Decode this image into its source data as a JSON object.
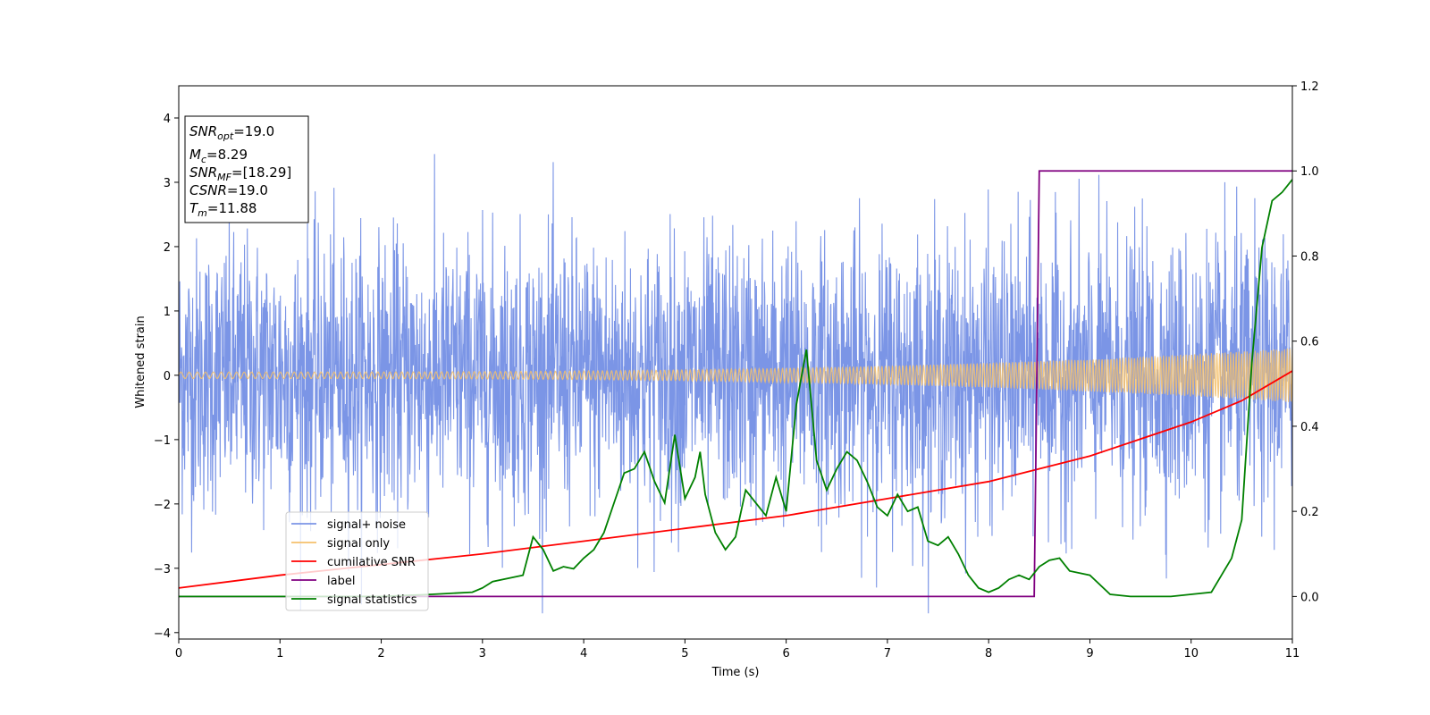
{
  "chart_data": {
    "type": "line",
    "xlabel": "Time (s)",
    "ylabel": "Whitened strain",
    "ylabel_right": "",
    "xlim": [
      0,
      11
    ],
    "ylim": [
      -4.1,
      4.5
    ],
    "ylim_right": [
      -0.1,
      1.2
    ],
    "x_ticks": [
      "0",
      "1",
      "2",
      "3",
      "4",
      "5",
      "6",
      "7",
      "8",
      "9",
      "10",
      "11"
    ],
    "y_ticks": [
      "−4",
      "−3",
      "−2",
      "−1",
      "0",
      "1",
      "2",
      "3",
      "4"
    ],
    "y_ticks_right": [
      "0.0",
      "0.2",
      "0.4",
      "0.6",
      "0.8",
      "1.0",
      "1.2"
    ],
    "grid": false,
    "legend_position": "lower-left",
    "info_box": {
      "lines": [
        {
          "sym": "SNR",
          "sub": "opt",
          "val": "=19.0"
        },
        {
          "sym": "M",
          "sub": "c",
          "val": "=8.29"
        },
        {
          "sym": "SNR",
          "sub": "MF",
          "val": "=[18.29]"
        },
        {
          "sym": "CSNR",
          "sub": "",
          "val": "=19.0"
        },
        {
          "sym": "T",
          "sub": "m",
          "val": "=11.88"
        }
      ]
    },
    "series": [
      {
        "name": "signal+ noise",
        "axis": "left",
        "color": "#7b95e6",
        "kind": "noise",
        "note_envelope": "values range approximately between -3.7 and 3.7 with typical spread +/-1.5"
      },
      {
        "name": "signal only",
        "axis": "left",
        "color": "#f5c16c",
        "kind": "chirp",
        "amplitude_start": 0.05,
        "amplitude_end": 0.42
      },
      {
        "name": "cumilative SNR",
        "axis": "right",
        "color": "#ff0000",
        "x": [
          0,
          1,
          2,
          3,
          4,
          5,
          6,
          7,
          8,
          9,
          10,
          10.5,
          11
        ],
        "y": [
          0.02,
          0.05,
          0.075,
          0.1,
          0.13,
          0.16,
          0.19,
          0.23,
          0.27,
          0.33,
          0.41,
          0.46,
          0.53
        ]
      },
      {
        "name": "label",
        "axis": "right",
        "color": "#800080",
        "x": [
          0,
          8.45,
          8.5,
          11
        ],
        "y": [
          0,
          0,
          1,
          1
        ]
      },
      {
        "name": "signal statistics",
        "axis": "right",
        "color": "#008000",
        "x": [
          0,
          1,
          2,
          2.5,
          2.9,
          3.0,
          3.1,
          3.4,
          3.5,
          3.6,
          3.7,
          3.8,
          3.9,
          4.0,
          4.1,
          4.2,
          4.3,
          4.4,
          4.5,
          4.6,
          4.7,
          4.8,
          4.9,
          5.0,
          5.1,
          5.15,
          5.2,
          5.3,
          5.4,
          5.5,
          5.6,
          5.7,
          5.8,
          5.9,
          6.0,
          6.1,
          6.2,
          6.3,
          6.4,
          6.5,
          6.6,
          6.7,
          6.8,
          6.9,
          7.0,
          7.1,
          7.2,
          7.3,
          7.4,
          7.5,
          7.6,
          7.7,
          7.8,
          7.9,
          8.0,
          8.1,
          8.2,
          8.3,
          8.4,
          8.5,
          8.6,
          8.7,
          8.8,
          9.0,
          9.2,
          9.4,
          9.6,
          9.8,
          10.0,
          10.2,
          10.3,
          10.4,
          10.5,
          10.6,
          10.7,
          10.8,
          10.9,
          11.0
        ],
        "y": [
          0.0,
          0.0,
          0.0,
          0.005,
          0.01,
          0.02,
          0.035,
          0.05,
          0.14,
          0.11,
          0.06,
          0.07,
          0.065,
          0.09,
          0.11,
          0.15,
          0.22,
          0.29,
          0.3,
          0.34,
          0.27,
          0.22,
          0.38,
          0.23,
          0.28,
          0.34,
          0.24,
          0.15,
          0.11,
          0.14,
          0.25,
          0.22,
          0.19,
          0.28,
          0.2,
          0.45,
          0.58,
          0.32,
          0.25,
          0.3,
          0.34,
          0.32,
          0.27,
          0.21,
          0.19,
          0.24,
          0.2,
          0.21,
          0.13,
          0.12,
          0.14,
          0.1,
          0.05,
          0.02,
          0.01,
          0.02,
          0.04,
          0.05,
          0.04,
          0.07,
          0.085,
          0.09,
          0.06,
          0.05,
          0.005,
          0.0,
          0.0,
          0.0,
          0.005,
          0.01,
          0.05,
          0.09,
          0.18,
          0.55,
          0.82,
          0.93,
          0.95,
          0.98
        ]
      }
    ]
  }
}
